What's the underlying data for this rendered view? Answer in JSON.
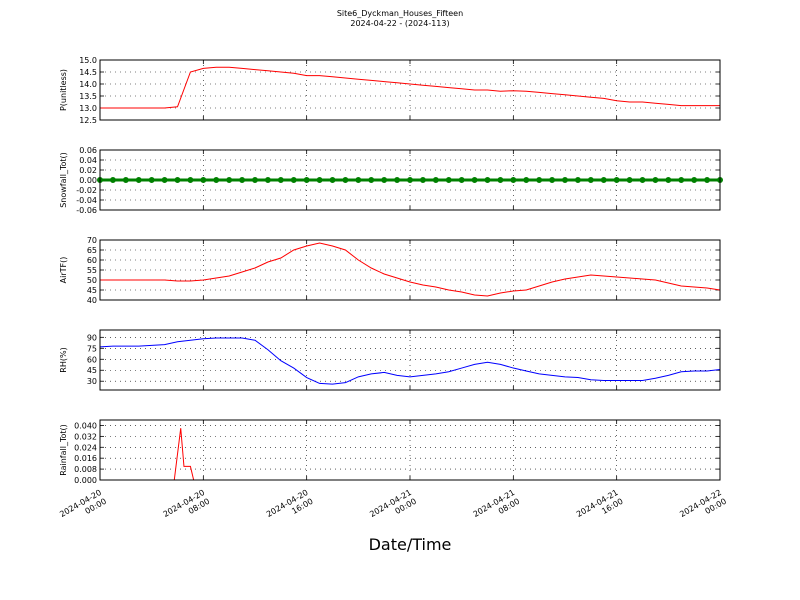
{
  "title": "Site6_Dyckman_Houses_Fifteen",
  "subtitle": "2024-04-22 - (2024-113)",
  "xlabel": "Date/Time",
  "xlim": [
    "2024-04-20 00:00",
    "2024-04-22 00:00"
  ],
  "xticks": [
    "2024-04-20 00:00",
    "2024-04-20 08:00",
    "2024-04-20 16:00",
    "2024-04-21 00:00",
    "2024-04-21 08:00",
    "2024-04-21 16:00",
    "2024-04-22 00:00"
  ],
  "x": [
    "2024-04-20 00:00",
    "2024-04-20 01:00",
    "2024-04-20 02:00",
    "2024-04-20 03:00",
    "2024-04-20 04:00",
    "2024-04-20 05:00",
    "2024-04-20 06:00",
    "2024-04-20 07:00",
    "2024-04-20 08:00",
    "2024-04-20 09:00",
    "2024-04-20 10:00",
    "2024-04-20 11:00",
    "2024-04-20 12:00",
    "2024-04-20 13:00",
    "2024-04-20 14:00",
    "2024-04-20 15:00",
    "2024-04-20 16:00",
    "2024-04-20 17:00",
    "2024-04-20 18:00",
    "2024-04-20 19:00",
    "2024-04-20 20:00",
    "2024-04-20 21:00",
    "2024-04-20 22:00",
    "2024-04-20 23:00",
    "2024-04-21 00:00",
    "2024-04-21 01:00",
    "2024-04-21 02:00",
    "2024-04-21 03:00",
    "2024-04-21 04:00",
    "2024-04-21 05:00",
    "2024-04-21 06:00",
    "2024-04-21 07:00",
    "2024-04-21 08:00",
    "2024-04-21 09:00",
    "2024-04-21 10:00",
    "2024-04-21 11:00",
    "2024-04-21 12:00",
    "2024-04-21 13:00",
    "2024-04-21 14:00",
    "2024-04-21 15:00",
    "2024-04-21 16:00",
    "2024-04-21 17:00",
    "2024-04-21 18:00",
    "2024-04-21 19:00",
    "2024-04-21 20:00",
    "2024-04-21 21:00",
    "2024-04-21 22:00",
    "2024-04-21 23:00",
    "2024-04-22 00:00"
  ],
  "chart_data": [
    {
      "type": "line",
      "ylabel": "P(unitless)",
      "color": "#ff0000",
      "grid": true,
      "ylim": [
        12.5,
        15
      ],
      "yticks": [
        12.5,
        {
          "value": 13,
          "label": "13.0"
        },
        13.5,
        {
          "value": 14,
          "label": "14.0"
        },
        14.5,
        {
          "value": 15,
          "label": "15.0"
        }
      ],
      "values": [
        13,
        13,
        13,
        13,
        13,
        13,
        13.05,
        14.5,
        14.65,
        14.7,
        14.7,
        14.65,
        14.6,
        14.55,
        14.5,
        14.45,
        14.35,
        14.35,
        14.3,
        14.25,
        14.2,
        14.15,
        14.1,
        14.05,
        14,
        13.95,
        13.9,
        13.85,
        13.8,
        13.75,
        13.75,
        13.7,
        13.72,
        13.7,
        13.65,
        13.6,
        13.55,
        13.5,
        13.45,
        13.4,
        13.3,
        13.25,
        13.25,
        13.2,
        13.15,
        13.1,
        13.1,
        13.1,
        13.1
      ]
    },
    {
      "type": "line",
      "ylabel": "Snowfall_Tot()",
      "color": "#008000",
      "grid": true,
      "markers": true,
      "ylim": [
        -0.06,
        0.06
      ],
      "yticks": [
        -0.06,
        -0.04,
        -0.02,
        {
          "value": 0,
          "label": "0.00"
        },
        0.02,
        0.04,
        0.06
      ],
      "values": [
        0,
        0,
        0,
        0,
        0,
        0,
        0,
        0,
        0,
        0,
        0,
        0,
        0,
        0,
        0,
        0,
        0,
        0,
        0,
        0,
        0,
        0,
        0,
        0,
        0,
        0,
        0,
        0,
        0,
        0,
        0,
        0,
        0,
        0,
        0,
        0,
        0,
        0,
        0,
        0,
        0,
        0,
        0,
        0,
        0,
        0,
        0,
        0,
        0
      ]
    },
    {
      "type": "line",
      "ylabel": "AirTF()",
      "color": "#ff0000",
      "grid": true,
      "ylim": [
        40,
        70
      ],
      "yticks": [
        40,
        45,
        50,
        55,
        60,
        65,
        70
      ],
      "values": [
        50,
        50,
        50,
        50,
        50,
        50,
        49.5,
        49.5,
        50,
        51,
        52,
        54,
        56,
        59,
        61,
        65,
        67,
        68.5,
        67,
        65,
        60,
        56,
        53,
        51,
        49,
        47.5,
        46.5,
        45,
        44,
        42.5,
        42,
        43.5,
        44.5,
        45,
        47,
        49,
        50.5,
        51.5,
        52.5,
        52,
        51.5,
        51,
        50.5,
        50,
        48.5,
        47,
        46.5,
        46,
        45
      ]
    },
    {
      "type": "line",
      "ylabel": "RH(%)",
      "color": "#0000ff",
      "grid": true,
      "ylim": [
        18,
        100
      ],
      "yticks": [
        30,
        45,
        60,
        75,
        90
      ],
      "values": [
        77,
        78,
        78,
        78,
        79,
        80,
        84,
        86,
        88,
        89,
        89,
        89,
        86,
        73,
        58,
        48,
        35,
        27,
        26,
        28,
        36,
        40,
        42,
        38,
        36,
        38,
        40,
        43,
        48,
        53,
        56,
        53,
        48,
        44,
        40,
        38,
        36,
        35,
        32,
        31,
        31,
        31,
        31,
        34,
        38,
        43,
        44,
        44,
        46
      ]
    },
    {
      "type": "line",
      "ylabel": "Rainfall_Tot()",
      "color": "#ff0000",
      "grid": true,
      "ylim": [
        0,
        0.044
      ],
      "yticks": [
        {
          "value": 0,
          "label": "0.000"
        },
        0.008,
        0.016,
        0.024,
        0.032,
        {
          "value": 0.04,
          "label": "0.040"
        }
      ],
      "x": [
        "2024-04-20 00:00",
        "2024-04-20 05:45",
        "2024-04-20 06:15",
        "2024-04-20 06:30",
        "2024-04-20 07:00",
        "2024-04-20 07:15",
        "2024-04-22 00:00"
      ],
      "values": [
        0,
        0,
        0.038,
        0.01,
        0.01,
        0,
        0
      ]
    }
  ]
}
